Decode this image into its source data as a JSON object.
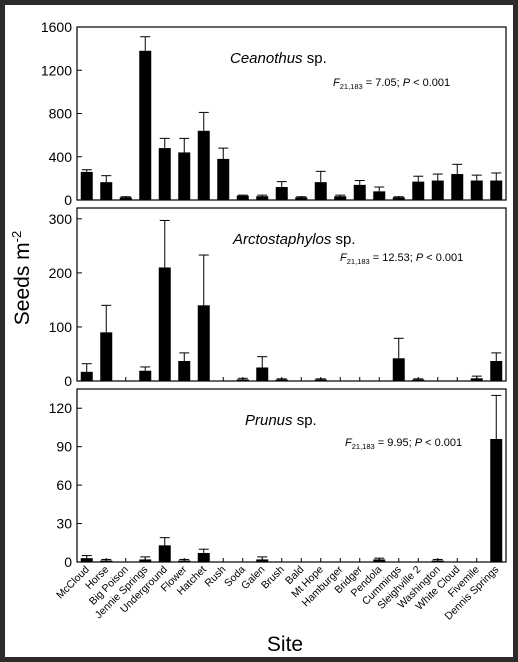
{
  "figure": {
    "ylabel_main": "Seeds m",
    "ylabel_sup": "-2",
    "xlabel": "Site"
  },
  "chart_data": [
    {
      "type": "bar",
      "title_italic": "Ceanothus",
      "title_rest": " sp.",
      "stat_f": "F",
      "stat_sub": "21,183",
      "stat_mid": " = 7.05; ",
      "stat_p": "P",
      "stat_end": " < 0.001",
      "ylim": [
        0,
        1600
      ],
      "yticks": [
        "0",
        "400",
        "800",
        "1200",
        "1600"
      ],
      "ytick_values": [
        0,
        400,
        800,
        1200,
        1600
      ],
      "categories": [
        "McCloud",
        "Horse",
        "Big Poison",
        "Jennie Springs",
        "Underground",
        "Flower",
        "Hatchet",
        "Rush",
        "Soda",
        "Galen",
        "Brush",
        "Bald",
        "Mt Hope",
        "Hamburger",
        "Bridger",
        "Pendola",
        "Cummings",
        "Sleighville 2",
        "Washington",
        "White Cloud",
        "Fivemile",
        "Dennis Springs"
      ],
      "values": [
        260,
        165,
        25,
        1380,
        480,
        440,
        640,
        380,
        40,
        35,
        120,
        25,
        165,
        35,
        140,
        80,
        25,
        170,
        180,
        240,
        180,
        180
      ],
      "errors": [
        20,
        60,
        5,
        130,
        90,
        130,
        170,
        100,
        5,
        10,
        50,
        5,
        100,
        10,
        40,
        40,
        5,
        50,
        60,
        90,
        50,
        70
      ]
    },
    {
      "type": "bar",
      "title_italic": "Arctostaphylos",
      "title_rest": " sp.",
      "stat_f": "F",
      "stat_sub": "21,183",
      "stat_mid": " = 12.53; ",
      "stat_p": "P",
      "stat_end": " < 0.001",
      "ylim": [
        0,
        320
      ],
      "yticks": [
        "0",
        "100",
        "200",
        "300"
      ],
      "ytick_values": [
        0,
        100,
        200,
        300
      ],
      "categories": [
        "McCloud",
        "Horse",
        "Big Poison",
        "Jennie Springs",
        "Underground",
        "Flower",
        "Hatchet",
        "Rush",
        "Soda",
        "Galen",
        "Brush",
        "Bald",
        "Mt Hope",
        "Hamburger",
        "Bridger",
        "Pendola",
        "Cummings",
        "Sleighville 2",
        "Washington",
        "White Cloud",
        "Fivemile",
        "Dennis Springs"
      ],
      "values": [
        17,
        90,
        0,
        19,
        210,
        37,
        140,
        0,
        3,
        25,
        2,
        0,
        2,
        0,
        0,
        0,
        42,
        2,
        0,
        0,
        5,
        37
      ],
      "errors": [
        15,
        50,
        0,
        7,
        87,
        15,
        93,
        0,
        2,
        20,
        2,
        0,
        2,
        0,
        0,
        0,
        37,
        2,
        0,
        0,
        4,
        15
      ]
    },
    {
      "type": "bar",
      "title_italic": "Prunus",
      "title_rest": " sp.",
      "stat_f": "F",
      "stat_sub": "21,183",
      "stat_mid": " = 9.95; ",
      "stat_p": "P",
      "stat_end": " < 0.001",
      "ylim": [
        0,
        135
      ],
      "yticks": [
        "0",
        "30",
        "60",
        "90",
        "120"
      ],
      "ytick_values": [
        0,
        30,
        60,
        90,
        120
      ],
      "categories": [
        "McCloud",
        "Horse",
        "Big Poison",
        "Jennie Springs",
        "Underground",
        "Flower",
        "Hatchet",
        "Rush",
        "Soda",
        "Galen",
        "Brush",
        "Bald",
        "Mt Hope",
        "Hamburger",
        "Bridger",
        "Pendola",
        "Cummings",
        "Sleighville 2",
        "Washington",
        "White Cloud",
        "Fivemile",
        "Dennis Springs"
      ],
      "values": [
        3,
        1,
        0,
        2,
        13,
        1,
        7,
        0,
        0,
        2,
        0,
        0,
        0,
        0,
        0,
        2,
        0,
        0,
        1,
        0,
        0,
        96
      ],
      "errors": [
        2,
        1,
        0,
        2,
        6,
        1,
        3,
        0,
        0,
        2,
        0,
        0,
        0,
        0,
        0,
        1,
        0,
        0,
        1,
        0,
        0,
        34
      ]
    }
  ]
}
